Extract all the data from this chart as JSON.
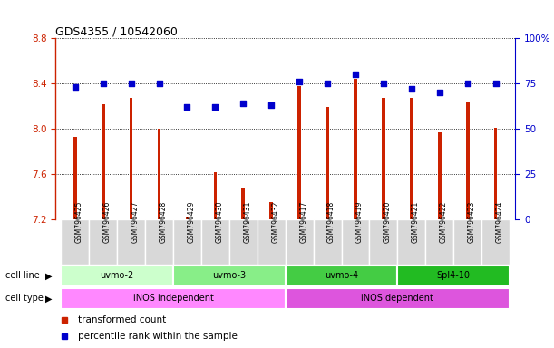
{
  "title": "GDS4355 / 10542060",
  "samples": [
    "GSM796425",
    "GSM796426",
    "GSM796427",
    "GSM796428",
    "GSM796429",
    "GSM796430",
    "GSM796431",
    "GSM796432",
    "GSM796417",
    "GSM796418",
    "GSM796419",
    "GSM796420",
    "GSM796421",
    "GSM796422",
    "GSM796423",
    "GSM796424"
  ],
  "transformed_count": [
    7.93,
    8.22,
    8.27,
    8.0,
    7.22,
    7.62,
    7.48,
    7.35,
    8.38,
    8.19,
    8.44,
    8.27,
    8.27,
    7.97,
    8.24,
    8.01
  ],
  "percentile_rank": [
    73,
    75,
    75,
    75,
    62,
    62,
    64,
    63,
    76,
    75,
    80,
    75,
    72,
    70,
    75,
    75
  ],
  "cell_lines": [
    {
      "label": "uvmo-2",
      "start": 0,
      "end": 3
    },
    {
      "label": "uvmo-3",
      "start": 4,
      "end": 7
    },
    {
      "label": "uvmo-4",
      "start": 8,
      "end": 11
    },
    {
      "label": "Spl4-10",
      "start": 12,
      "end": 15
    }
  ],
  "cell_line_colors": [
    "#ccffcc",
    "#88ee88",
    "#44cc44",
    "#22bb22"
  ],
  "cell_types": [
    {
      "label": "iNOS independent",
      "start": 0,
      "end": 7
    },
    {
      "label": "iNOS dependent",
      "start": 8,
      "end": 15
    }
  ],
  "cell_type_colors": [
    "#ff88ff",
    "#dd55dd"
  ],
  "ylim_left": [
    7.2,
    8.8
  ],
  "ylim_right": [
    0,
    100
  ],
  "yticks_left": [
    7.2,
    7.6,
    8.0,
    8.4,
    8.8
  ],
  "yticks_right": [
    0,
    25,
    50,
    75,
    100
  ],
  "bar_color": "#cc2200",
  "dot_color": "#0000cc",
  "background_color": "#ffffff",
  "legend_bar": "transformed count",
  "legend_dot": "percentile rank within the sample",
  "bar_width": 0.12
}
